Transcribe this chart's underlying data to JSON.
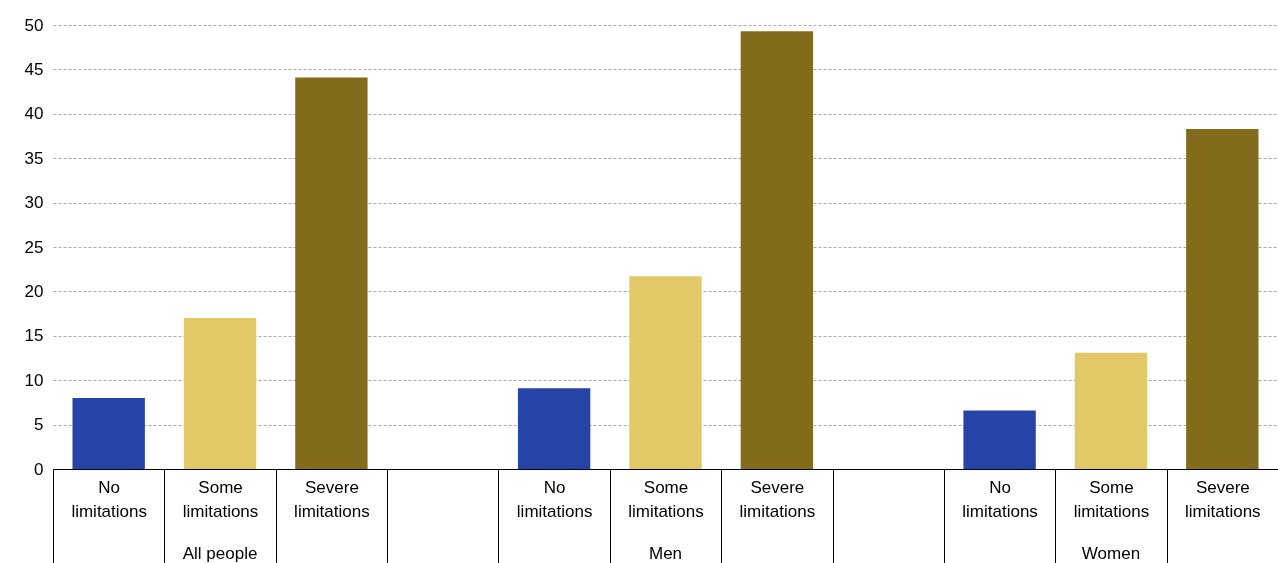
{
  "chart_data": {
    "type": "bar",
    "categories": [
      "No limitations",
      "Some limitations",
      "Severe limitations",
      null,
      "No limitations",
      "Some limitations",
      "Severe limitations",
      null,
      "No limitations",
      "Some limitations",
      "Severe limitations"
    ],
    "values": [
      8.0,
      17.0,
      44.1,
      null,
      9.1,
      21.7,
      49.3,
      null,
      6.6,
      13.1,
      38.3
    ],
    "colors": [
      "#2644a8",
      "#e2c866",
      "#826c1b",
      null,
      "#2644a8",
      "#e2c866",
      "#826c1b",
      null,
      "#2644a8",
      "#e2c866",
      "#826c1b"
    ],
    "annotations": [
      "All people",
      "Men",
      "Women"
    ],
    "ylim": [
      0,
      50
    ],
    "yticks": [
      0,
      5,
      10,
      15,
      20,
      25,
      30,
      35,
      40,
      45,
      50
    ],
    "grid": "y"
  }
}
